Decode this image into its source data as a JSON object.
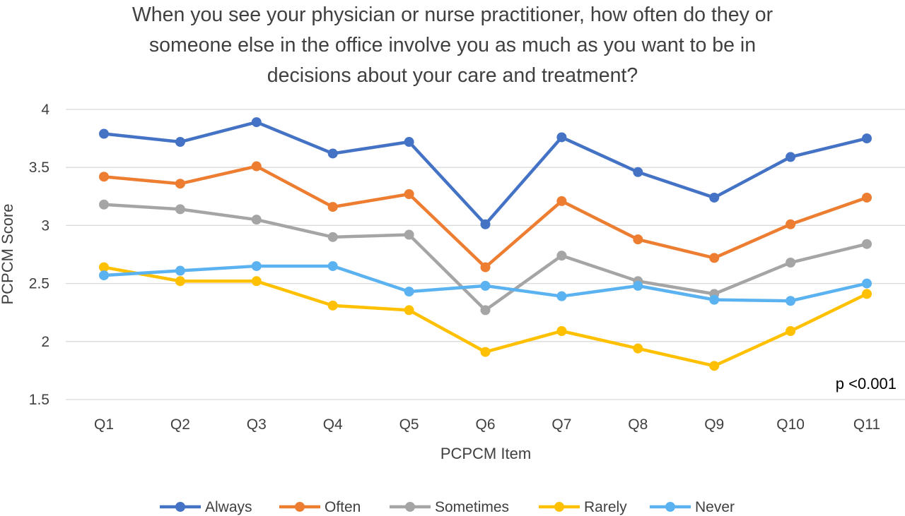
{
  "chart_data": {
    "type": "line",
    "title_lines": [
      "When you see your physician or nurse practitioner, how often do they or",
      "someone else in the office involve you as much as you want to be in",
      "decisions about your care and treatment?"
    ],
    "xlabel": "PCPCM Item",
    "ylabel": "PCPCM Score",
    "ylim": [
      1.5,
      4
    ],
    "yticks": [
      "1.5",
      "2",
      "2.5",
      "3",
      "3.5",
      "4"
    ],
    "grid": true,
    "legend_position": "bottom",
    "annotation": "p <0.001",
    "categories": [
      "Q1",
      "Q2",
      "Q3",
      "Q4",
      "Q5",
      "Q6",
      "Q7",
      "Q8",
      "Q9",
      "Q10",
      "Q11"
    ],
    "series": [
      {
        "name": "Always",
        "color": "#4472C4",
        "values": [
          3.79,
          3.72,
          3.89,
          3.62,
          3.72,
          3.01,
          3.76,
          3.46,
          3.24,
          3.59,
          3.75
        ]
      },
      {
        "name": "Often",
        "color": "#ED7D31",
        "values": [
          3.42,
          3.36,
          3.51,
          3.16,
          3.27,
          2.64,
          3.21,
          2.88,
          2.72,
          3.01,
          3.24
        ]
      },
      {
        "name": "Sometimes",
        "color": "#A5A5A5",
        "values": [
          3.18,
          3.14,
          3.05,
          2.9,
          2.92,
          2.27,
          2.74,
          2.52,
          2.41,
          2.68,
          2.84
        ]
      },
      {
        "name": "Rarely",
        "color": "#FFC000",
        "values": [
          2.64,
          2.52,
          2.52,
          2.31,
          2.27,
          1.91,
          2.09,
          1.94,
          1.79,
          2.09,
          2.41
        ]
      },
      {
        "name": "Never",
        "color": "#5BB2F0",
        "values": [
          2.57,
          2.61,
          2.65,
          2.65,
          2.43,
          2.48,
          2.39,
          2.48,
          2.36,
          2.35,
          2.5
        ]
      }
    ]
  }
}
